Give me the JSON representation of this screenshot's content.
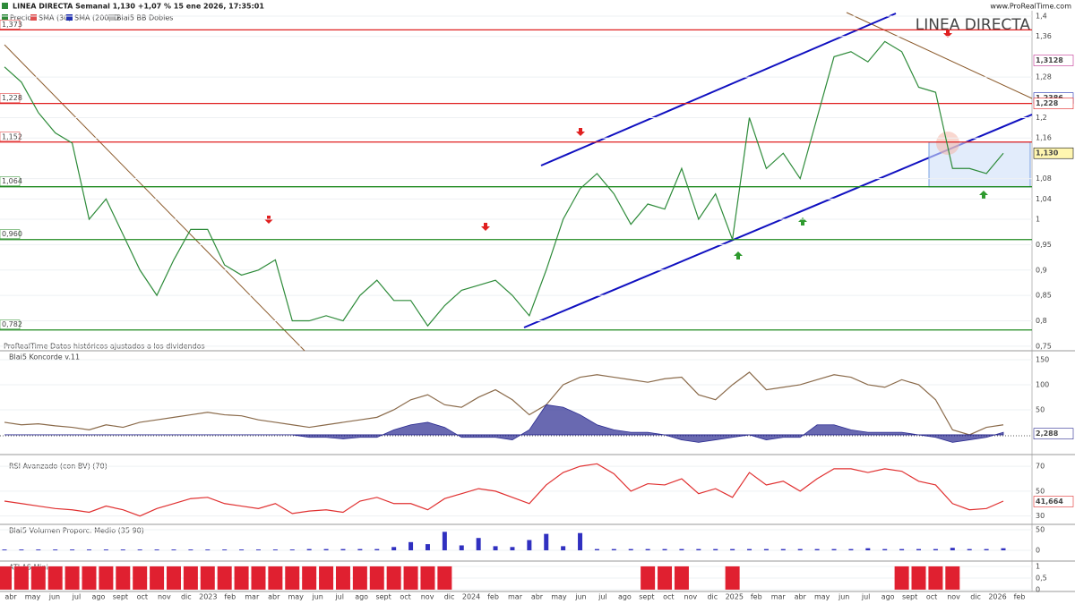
{
  "header": {
    "title": "LINEA DIRECTA Semanal 1,130 +1,07 % 15 ene 2026, 17:35:01",
    "site": "www.ProRealTime.com",
    "legend": [
      "Precio",
      "SMA (30)",
      "SMA (200) D",
      "Blai5 BB Dobles"
    ],
    "watermark": "LINEA DIRECTA",
    "note": "ProRealTime Datos históricos ajustados a los dividendos"
  },
  "x_axis": {
    "labels": [
      "abr",
      "may",
      "jun",
      "jul",
      "ago",
      "sept",
      "oct",
      "nov",
      "dic",
      "2023",
      "feb",
      "mar",
      "abr",
      "may",
      "jun",
      "jul",
      "ago",
      "sept",
      "oct",
      "nov",
      "dic",
      "2024",
      "feb",
      "mar",
      "abr",
      "may",
      "jun",
      "jul",
      "ago",
      "sept",
      "oct",
      "nov",
      "dic",
      "2025",
      "feb",
      "mar",
      "abr",
      "may",
      "jun",
      "jul",
      "ago",
      "sept",
      "oct",
      "nov",
      "dic",
      "2026",
      "feb"
    ]
  },
  "chart_data": [
    {
      "type": "line",
      "ylim": [
        0.741,
        1.4106
      ],
      "yticks": [
        {
          "value": 1.4,
          "label": "1,4"
        },
        {
          "value": 1.36,
          "label": "1,36"
        },
        {
          "value": 1.28,
          "label": "1,28"
        },
        {
          "value": 1.2,
          "label": "1,2"
        },
        {
          "value": 1.16,
          "label": "1,16"
        },
        {
          "value": 1.08,
          "label": "1,08"
        },
        {
          "value": 1.04,
          "label": "1,04"
        },
        1,
        {
          "value": 0.95,
          "label": "0,95"
        },
        {
          "value": 0.9,
          "label": "0,9"
        },
        {
          "value": 0.85,
          "label": "0,85"
        },
        {
          "value": 0.8,
          "label": "0,8"
        },
        {
          "value": 0.75,
          "label": "0,75"
        }
      ],
      "series": [
        {
          "color": "#2e8b3a",
          "values": [
            1.3,
            1.27,
            1.21,
            1.17,
            1.15,
            1.0,
            1.04,
            0.97,
            0.9,
            0.85,
            0.92,
            0.98,
            0.98,
            0.91,
            0.89,
            0.9,
            0.92,
            0.8,
            0.8,
            0.81,
            0.8,
            0.85,
            0.88,
            0.84,
            0.84,
            0.79,
            0.83,
            0.86,
            0.87,
            0.88,
            0.85,
            0.81,
            0.9,
            1.0,
            1.06,
            1.09,
            1.05,
            0.99,
            1.03,
            1.02,
            1.1,
            1.0,
            1.05,
            0.96,
            1.2,
            1.1,
            1.13,
            1.08,
            1.2,
            1.32,
            1.33,
            1.31,
            1.35,
            1.33,
            1.26,
            1.25,
            1.1,
            1.1,
            1.09,
            1.13
          ]
        }
      ],
      "levels": [
        {
          "value": 1.373,
          "label": "1,373",
          "color": "#e02020"
        },
        {
          "value": 1.228,
          "label": "1,228",
          "color": "#e02020"
        },
        {
          "value": 1.152,
          "label": "1,152",
          "color": "#e02020"
        },
        {
          "value": 1.064,
          "label": "1,064",
          "color": "#1f8a1f"
        },
        {
          "value": 0.96,
          "label": "0,960",
          "color": "#1f8a1f"
        },
        {
          "value": 0.782,
          "label": "0,782",
          "color": "#1f8a1f"
        }
      ],
      "badges": [
        {
          "value": 1.3128,
          "label": "1,3128",
          "color": "#c03090",
          "fill": "#ffffff"
        },
        {
          "value": 1.2386,
          "label": "1,2386",
          "color": "#2030b0",
          "fill": "#ffffff"
        },
        {
          "value": 1.228,
          "label": "1,228",
          "color": "#e02020",
          "fill": "#ffffff"
        },
        {
          "value": 1.13,
          "label": "1,130",
          "color": "#111111",
          "fill": "#fff6b0"
        }
      ]
    },
    {
      "type": "area",
      "title": "Blai5 Koncorde v.11",
      "ylim": [
        -34,
        166
      ],
      "yticks": [
        50,
        100,
        150
      ],
      "series": [
        {
          "color": "#8a6a4a",
          "values": [
            25,
            20,
            22,
            18,
            15,
            10,
            20,
            15,
            25,
            30,
            35,
            40,
            45,
            40,
            38,
            30,
            25,
            20,
            15,
            20,
            25,
            30,
            35,
            50,
            70,
            80,
            60,
            55,
            75,
            90,
            70,
            40,
            60,
            100,
            115,
            120,
            115,
            110,
            105,
            112,
            115,
            80,
            70,
            100,
            125,
            90,
            95,
            100,
            110,
            120,
            115,
            100,
            95,
            110,
            100,
            70,
            10,
            0,
            15,
            20
          ]
        },
        {
          "color": "#2a2a90",
          "fill": true,
          "values": [
            0,
            0,
            0,
            0,
            0,
            0,
            0,
            0,
            0,
            0,
            0,
            0,
            0,
            0,
            0,
            0,
            0,
            0,
            -5,
            -5,
            -8,
            -5,
            -5,
            10,
            20,
            25,
            15,
            -5,
            -5,
            -5,
            -10,
            10,
            60,
            55,
            40,
            20,
            10,
            5,
            5,
            0,
            -10,
            -15,
            -10,
            -5,
            0,
            -10,
            -5,
            -5,
            20,
            20,
            10,
            5,
            5,
            5,
            0,
            -5,
            -15,
            -10,
            -5,
            5
          ]
        }
      ],
      "badges": [
        {
          "value": 2.288,
          "label": "2,288",
          "color": "#2a2a90",
          "fill": "#ffffff"
        }
      ]
    },
    {
      "type": "line",
      "title": "RSI Avanzado (con BV) (70)",
      "ylim": [
        24,
        74.4
      ],
      "yticks": [
        30,
        50,
        70
      ],
      "series": [
        {
          "color": "#e03030",
          "values": [
            42,
            40,
            38,
            36,
            35,
            33,
            38,
            35,
            30,
            36,
            40,
            44,
            45,
            40,
            38,
            36,
            40,
            32,
            34,
            35,
            33,
            42,
            45,
            40,
            40,
            35,
            44,
            48,
            52,
            50,
            45,
            40,
            55,
            65,
            70,
            72,
            64,
            50,
            56,
            55,
            60,
            48,
            52,
            45,
            65,
            55,
            58,
            50,
            60,
            68,
            68,
            65,
            68,
            66,
            58,
            55,
            40,
            35,
            36,
            42
          ]
        }
      ],
      "badges": [
        {
          "value": 41.664,
          "label": "41,664",
          "color": "#e03030",
          "fill": "#ffffff"
        }
      ]
    },
    {
      "type": "bar",
      "title": "Blai5 Volumen Proporc. Medio (35 90)",
      "ylim": [
        -24,
        61
      ],
      "yticks": [
        0,
        50
      ],
      "series": [
        {
          "color": "#3030c0",
          "values": [
            2,
            2,
            2,
            2,
            2,
            2,
            2,
            2,
            2,
            2,
            2,
            2,
            2,
            2,
            2,
            2,
            2,
            2,
            3,
            3,
            3,
            3,
            3,
            8,
            20,
            15,
            45,
            12,
            30,
            10,
            8,
            25,
            40,
            10,
            42,
            3,
            3,
            3,
            3,
            3,
            3,
            3,
            3,
            3,
            3,
            3,
            3,
            3,
            3,
            3,
            3,
            5,
            3,
            3,
            3,
            3,
            6,
            3,
            3,
            5
          ]
        }
      ]
    },
    {
      "type": "bar",
      "title": "ATLAS Mini",
      "ylim": [
        -0.04,
        1.19
      ],
      "yticks": [
        0,
        {
          "value": 0.5,
          "label": "0,5"
        },
        1
      ],
      "series": [
        {
          "color": "#e02030",
          "values": [
            1,
            1,
            1,
            1,
            1,
            1,
            1,
            1,
            1,
            1,
            1,
            1,
            1,
            1,
            1,
            1,
            1,
            1,
            1,
            1,
            1,
            1,
            1,
            1,
            1,
            1,
            1,
            0,
            0,
            0,
            0,
            0,
            0,
            0,
            0,
            0,
            0,
            0,
            1,
            1,
            1,
            0,
            0,
            1,
            0,
            0,
            0,
            0,
            0,
            0,
            0,
            0,
            0,
            1,
            1,
            1,
            1,
            0,
            0,
            0
          ]
        }
      ]
    }
  ]
}
